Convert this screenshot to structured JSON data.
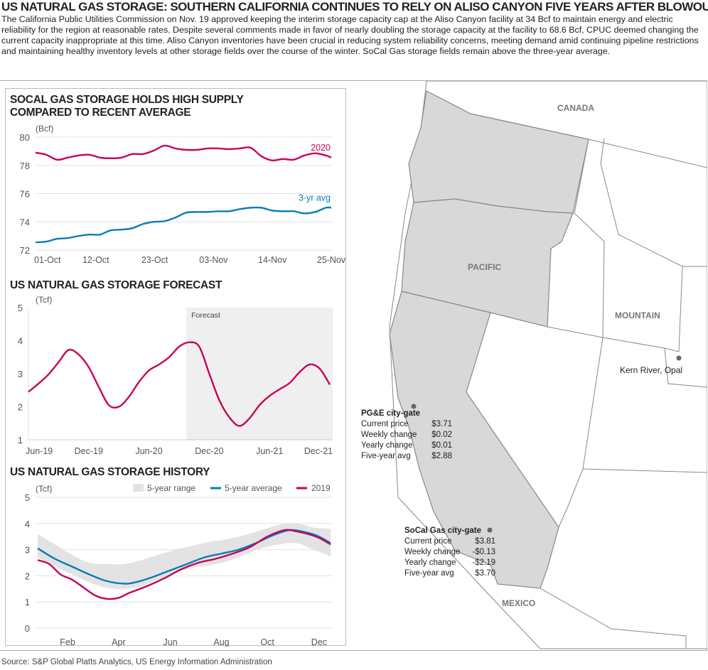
{
  "headline": "US NATURAL GAS STORAGE: SOUTHERN CALIFORNIA CONTINUES TO RELY ON ALISO CANYON FIVE YEARS AFTER BLOWOUT",
  "intro": "The California Public Utilities Commission on Nov. 19 approved keeping the interim storage capacity cap at the Aliso Canyon facility at 34 Bcf to maintain energy and electric reliability for the region at reasonable rates. Despite several comments made in favor of nearly doubling the storage capacity at the facility to 68.6 Bcf, CPUC deemed changing the current capacity inappropriate at this time. Aliso Canyon inventories have been crucial in reducing system reliability concerns, meeting demand amid continuing pipeline restrictions and maintaining healthy inventory levels at other storage fields over the course of the winter. SoCal Gas storage fields remain above the three-year average.",
  "source": "Source: S&P Global Platts Analytics, US Energy Information Administration",
  "colors": {
    "magenta": "#c8005a",
    "blue": "#0a7db5",
    "range": "#e3e3e3",
    "forecast_bg": "#efefef",
    "region": "#d8d8d8"
  },
  "chart_data": [
    {
      "type": "line",
      "title": "SOCAL GAS STORAGE HOLDS HIGH SUPPLY COMPARED TO RECENT AVERAGE",
      "ylabel": "(Bcf)",
      "ylim": [
        72,
        80
      ],
      "yticks": [
        "72",
        "74",
        "76",
        "78",
        "80"
      ],
      "xticks": [
        "01-Oct",
        "12-Oct",
        "23-Oct",
        "03-Nov",
        "14-Nov",
        "25-Nov"
      ],
      "grid": true,
      "x": [
        "10-01",
        "10-03",
        "10-05",
        "10-07",
        "10-09",
        "10-11",
        "10-13",
        "10-15",
        "10-17",
        "10-19",
        "10-21",
        "10-23",
        "10-25",
        "10-27",
        "10-29",
        "10-31",
        "11-02",
        "11-04",
        "11-06",
        "11-08",
        "11-10",
        "11-12",
        "11-14",
        "11-16",
        "11-18",
        "11-20",
        "11-22",
        "11-24",
        "11-25"
      ],
      "series": [
        {
          "name": "2020",
          "color": "#c8005a",
          "values": [
            78.9,
            78.75,
            78.4,
            78.55,
            78.7,
            78.75,
            78.55,
            78.5,
            78.55,
            78.8,
            78.8,
            79.05,
            79.4,
            79.2,
            79.1,
            79.1,
            79.2,
            79.2,
            79.15,
            79.2,
            79.25,
            78.65,
            78.35,
            78.45,
            78.4,
            78.7,
            78.85,
            78.7,
            78.55
          ]
        },
        {
          "name": "3-yr avg",
          "color": "#0a7db5",
          "values": [
            72.55,
            72.6,
            72.8,
            72.85,
            73.0,
            73.1,
            73.1,
            73.4,
            73.45,
            73.55,
            73.85,
            74.0,
            74.05,
            74.3,
            74.65,
            74.7,
            74.7,
            74.75,
            74.75,
            74.9,
            75.0,
            75.0,
            74.8,
            74.75,
            74.75,
            74.6,
            74.7,
            75.0,
            75.0
          ]
        }
      ]
    },
    {
      "type": "line",
      "title": "US NATURAL GAS STORAGE FORECAST",
      "ylabel": "(Tcf)",
      "ylim": [
        1,
        5
      ],
      "yticks": [
        "1",
        "2",
        "3",
        "4",
        "5"
      ],
      "xticks": [
        "Jun-19",
        "Dec-19",
        "Jun-20",
        "Dec-20",
        "Jun-21",
        "Dec-21"
      ],
      "annotation": "Forecast",
      "forecast_start": "Oct-20",
      "grid": false,
      "x": [
        "Jun-19",
        "Jul-19",
        "Aug-19",
        "Sep-19",
        "Oct-19",
        "Nov-19",
        "Dec-19",
        "Jan-20",
        "Feb-20",
        "Mar-20",
        "Apr-20",
        "May-20",
        "Jun-20",
        "Jul-20",
        "Aug-20",
        "Sep-20",
        "Oct-20",
        "Nov-20",
        "Dec-20",
        "Jan-21",
        "Feb-21",
        "Mar-21",
        "Apr-21",
        "May-21",
        "Jun-21",
        "Jul-21",
        "Aug-21",
        "Sep-21",
        "Oct-21",
        "Nov-21",
        "Dec-21"
      ],
      "series": [
        {
          "color": "#c8005a",
          "values": [
            2.45,
            2.7,
            2.98,
            3.35,
            3.72,
            3.58,
            3.2,
            2.6,
            2.05,
            2.0,
            2.3,
            2.75,
            3.1,
            3.28,
            3.5,
            3.82,
            3.95,
            3.82,
            3.0,
            2.2,
            1.68,
            1.42,
            1.65,
            2.05,
            2.33,
            2.53,
            2.72,
            3.05,
            3.28,
            3.15,
            2.67
          ]
        }
      ]
    },
    {
      "type": "area",
      "title": "US NATURAL GAS STORAGE HISTORY",
      "ylabel": "(Tcf)",
      "ylim": [
        0,
        5
      ],
      "yticks": [
        "0",
        "1",
        "2",
        "3",
        "4",
        "5"
      ],
      "xticks": [
        "Feb",
        "Apr",
        "Jun",
        "Aug",
        "Oct",
        "Dec"
      ],
      "legend": "top-right",
      "grid": true,
      "x_unit": "week",
      "range": {
        "name": "5-year range",
        "weeks": [
          1,
          4,
          7,
          10,
          13,
          16,
          19,
          22,
          25,
          28,
          31,
          34,
          37,
          40,
          43,
          46,
          49,
          52
        ],
        "upper": [
          3.6,
          3.2,
          2.8,
          2.5,
          2.45,
          2.45,
          2.6,
          2.8,
          3.0,
          3.15,
          3.3,
          3.4,
          3.55,
          3.75,
          3.95,
          4.0,
          3.85,
          3.8
        ],
        "lower": [
          2.7,
          2.35,
          2.05,
          1.75,
          1.55,
          1.5,
          1.6,
          1.85,
          2.1,
          2.3,
          2.4,
          2.55,
          2.8,
          3.05,
          3.2,
          3.25,
          3.0,
          2.75
        ]
      },
      "series": [
        {
          "name": "5-year average",
          "color": "#0a7db5",
          "weeks": [
            1,
            4,
            7,
            10,
            13,
            16,
            18,
            21,
            24,
            27,
            30,
            33,
            36,
            39,
            42,
            45,
            48,
            50,
            52
          ],
          "values": [
            3.05,
            2.65,
            2.35,
            2.05,
            1.8,
            1.7,
            1.75,
            1.95,
            2.2,
            2.45,
            2.7,
            2.85,
            3.0,
            3.25,
            3.55,
            3.75,
            3.65,
            3.5,
            3.25
          ]
        },
        {
          "name": "2019",
          "color": "#c8005a",
          "weeks": [
            1,
            3,
            5,
            7,
            9,
            11,
            13,
            15,
            17,
            20,
            23,
            26,
            29,
            32,
            35,
            38,
            41,
            44,
            46,
            48,
            50,
            52
          ],
          "values": [
            2.6,
            2.45,
            2.05,
            1.85,
            1.55,
            1.25,
            1.12,
            1.15,
            1.35,
            1.6,
            1.9,
            2.25,
            2.5,
            2.65,
            2.85,
            3.1,
            3.5,
            3.75,
            3.7,
            3.6,
            3.45,
            3.2
          ]
        }
      ]
    }
  ],
  "map": {
    "labels": {
      "canada": "CANADA",
      "pacific": "PACIFIC",
      "mountain": "MOUNTAIN",
      "mexico": "MEXICO",
      "kern": "Kern River, Opal"
    },
    "pge": {
      "title": "PG&E city-gate",
      "rows": [
        [
          "Current price",
          "$3.71"
        ],
        [
          "Weekly change",
          "$0.02"
        ],
        [
          "Yearly change",
          "$0.01"
        ],
        [
          "Five-year avg",
          "$2.88"
        ]
      ]
    },
    "socal": {
      "title": "SoCal Gas city-gate",
      "rows": [
        [
          "Current price",
          "$3.81"
        ],
        [
          "Weekly change",
          "-$0.13"
        ],
        [
          "Yearly change",
          "-$2.19"
        ],
        [
          "Five-year avg",
          "$3.70"
        ]
      ]
    }
  }
}
